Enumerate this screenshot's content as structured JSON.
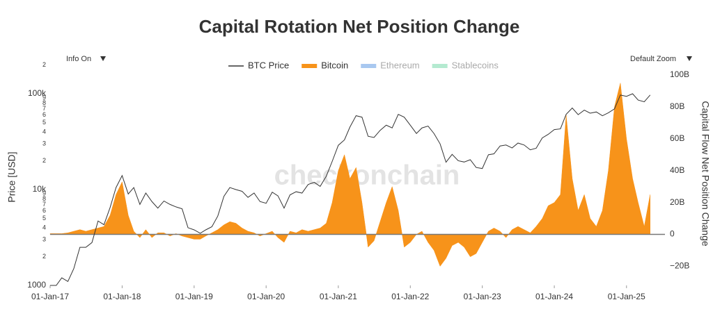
{
  "chart_data": {
    "type": "dual-axis-line-area",
    "title": "Capital Rotation Net Position Change",
    "controls": {
      "info": "Info On",
      "zoom": "Default Zoom"
    },
    "watermark": "checkonchain",
    "ylabel": "Price [USD]",
    "y2label": "Capital Flow Net Position Change",
    "log_y": true,
    "zeroline": true,
    "legend": "top",
    "xlim": [
      "2017-01-01",
      "2025-07-15"
    ],
    "xticks": [
      {
        "value": "2017-01-01",
        "label": "01-Jan-17"
      },
      {
        "value": "2018-01-01",
        "label": "01-Jan-18"
      },
      {
        "value": "2019-01-01",
        "label": "01-Jan-19"
      },
      {
        "value": "2020-01-01",
        "label": "01-Jan-20"
      },
      {
        "value": "2021-01-01",
        "label": "01-Jan-21"
      },
      {
        "value": "2022-01-01",
        "label": "01-Jan-22"
      },
      {
        "value": "2023-01-01",
        "label": "01-Jan-23"
      },
      {
        "value": "2024-01-01",
        "label": "01-Jan-24"
      },
      {
        "value": "2025-01-01",
        "label": "01-Jan-25"
      }
    ],
    "ylim": [
      1000,
      205000
    ],
    "yticks": [
      1000,
      {
        "value": 2000,
        "label": "2"
      },
      {
        "value": 3000,
        "label": "3"
      },
      {
        "value": 4000,
        "label": "4"
      },
      {
        "value": 5000,
        "label": "5"
      },
      {
        "value": 6000,
        "label": "6"
      },
      {
        "value": 7000,
        "label": "7"
      },
      {
        "value": 8000,
        "label": "8"
      },
      {
        "value": 9000,
        "label": "9"
      },
      {
        "value": 10000,
        "label": "10k"
      },
      {
        "value": 20000,
        "label": "2"
      },
      {
        "value": 30000,
        "label": "3"
      },
      {
        "value": 40000,
        "label": "4"
      },
      {
        "value": 50000,
        "label": "5"
      },
      {
        "value": 60000,
        "label": "6"
      },
      {
        "value": 70000,
        "label": "7"
      },
      {
        "value": 80000,
        "label": "8"
      },
      {
        "value": 90000,
        "label": "9"
      },
      {
        "value": 100000,
        "label": "100k"
      },
      {
        "value": 200000,
        "label": "2"
      }
    ],
    "y2lim": [
      -32,
      107
    ],
    "y2ticks": [
      {
        "value": -20,
        "label": "−20B"
      },
      0,
      {
        "value": 20,
        "label": "20B"
      },
      {
        "value": 40,
        "label": "40B"
      },
      {
        "value": 60,
        "label": "60B"
      },
      {
        "value": 80,
        "label": "80B"
      },
      {
        "value": 100,
        "label": "100B"
      }
    ],
    "x": [
      "2017-01-01",
      "2017-02-01",
      "2017-03-01",
      "2017-04-01",
      "2017-05-01",
      "2017-06-01",
      "2017-07-01",
      "2017-08-01",
      "2017-09-01",
      "2017-10-01",
      "2017-11-01",
      "2017-12-01",
      "2018-01-01",
      "2018-02-01",
      "2018-03-01",
      "2018-04-01",
      "2018-05-01",
      "2018-06-01",
      "2018-07-01",
      "2018-08-01",
      "2018-09-01",
      "2018-10-01",
      "2018-11-01",
      "2018-12-01",
      "2019-01-01",
      "2019-02-01",
      "2019-03-01",
      "2019-04-01",
      "2019-05-01",
      "2019-06-01",
      "2019-07-01",
      "2019-08-01",
      "2019-09-01",
      "2019-10-01",
      "2019-11-01",
      "2019-12-01",
      "2020-01-01",
      "2020-02-01",
      "2020-03-01",
      "2020-04-01",
      "2020-05-01",
      "2020-06-01",
      "2020-07-01",
      "2020-08-01",
      "2020-09-01",
      "2020-10-01",
      "2020-11-01",
      "2020-12-01",
      "2021-01-01",
      "2021-02-01",
      "2021-03-01",
      "2021-04-01",
      "2021-05-01",
      "2021-06-01",
      "2021-07-01",
      "2021-08-01",
      "2021-09-01",
      "2021-10-01",
      "2021-11-01",
      "2021-12-01",
      "2022-01-01",
      "2022-02-01",
      "2022-03-01",
      "2022-04-01",
      "2022-05-01",
      "2022-06-01",
      "2022-07-01",
      "2022-08-01",
      "2022-09-01",
      "2022-10-01",
      "2022-11-01",
      "2022-12-01",
      "2023-01-01",
      "2023-02-01",
      "2023-03-01",
      "2023-04-01",
      "2023-05-01",
      "2023-06-01",
      "2023-07-01",
      "2023-08-01",
      "2023-09-01",
      "2023-10-01",
      "2023-11-01",
      "2023-12-01",
      "2024-01-01",
      "2024-02-01",
      "2024-03-01",
      "2024-04-01",
      "2024-05-01",
      "2024-06-01",
      "2024-07-01",
      "2024-08-01",
      "2024-09-01",
      "2024-10-01",
      "2024-11-01",
      "2024-12-01",
      "2025-01-01",
      "2025-02-01",
      "2025-03-01",
      "2025-04-01",
      "2025-05-01"
    ],
    "series": [
      {
        "name": "BTC Price",
        "color": "#333333",
        "kind": "line",
        "axis": "y",
        "values": [
          1000,
          1000,
          1200,
          1100,
          1500,
          2500,
          2500,
          2800,
          4700,
          4300,
          6500,
          10500,
          14000,
          9000,
          10500,
          7000,
          9200,
          7500,
          6400,
          7600,
          7000,
          6600,
          6300,
          4000,
          3800,
          3500,
          3800,
          4100,
          5300,
          8500,
          10500,
          10000,
          9600,
          8300,
          9200,
          7500,
          7200,
          9400,
          8600,
          6400,
          8800,
          9500,
          9200,
          11300,
          11900,
          10800,
          13800,
          19700,
          29000,
          33000,
          45000,
          59000,
          57000,
          36000,
          35000,
          41500,
          47000,
          44000,
          61000,
          57000,
          47000,
          38500,
          44000,
          46000,
          38500,
          30000,
          19300,
          23300,
          20000,
          19400,
          20500,
          17000,
          16600,
          23100,
          23600,
          28500,
          29200,
          27200,
          30600,
          29200,
          26000,
          27000,
          34600,
          37700,
          42300,
          43000,
          61000,
          71000,
          60500,
          67500,
          62700,
          64600,
          59000,
          63300,
          69500,
          97000,
          94000,
          100000,
          86000,
          82500,
          97000
        ]
      },
      {
        "name": "Bitcoin",
        "color": "#f7931a",
        "kind": "area",
        "axis": "y2",
        "values": [
          0.5,
          0.5,
          0.5,
          1,
          2,
          3,
          2,
          3,
          4,
          5,
          12,
          25,
          33,
          12,
          2,
          -2,
          3,
          -2,
          1,
          1,
          -1,
          0.5,
          -1,
          -2,
          -3,
          -3,
          -1,
          1,
          3,
          6,
          8,
          7,
          4,
          2,
          1,
          -1,
          0.5,
          2,
          -2,
          -5,
          2,
          1,
          3,
          2,
          3,
          4,
          7,
          20,
          40,
          50,
          35,
          42,
          20,
          -8,
          -4,
          8,
          20,
          30,
          15,
          -8,
          -5,
          0,
          2,
          -5,
          -10,
          -20,
          -15,
          -7,
          -5,
          -8,
          -14,
          -12,
          -5,
          2,
          4,
          2,
          -2,
          3,
          5,
          3,
          1,
          5,
          10,
          18,
          20,
          25,
          75,
          35,
          15,
          25,
          10,
          5,
          15,
          40,
          80,
          95,
          60,
          35,
          20,
          5,
          25
        ]
      },
      {
        "name": "Ethereum",
        "color": "#a8c8f0",
        "kind": "area",
        "axis": "y2",
        "hidden": true
      },
      {
        "name": "Stablecoins",
        "color": "#b4ead0",
        "kind": "area",
        "axis": "y2",
        "hidden": true
      }
    ]
  }
}
